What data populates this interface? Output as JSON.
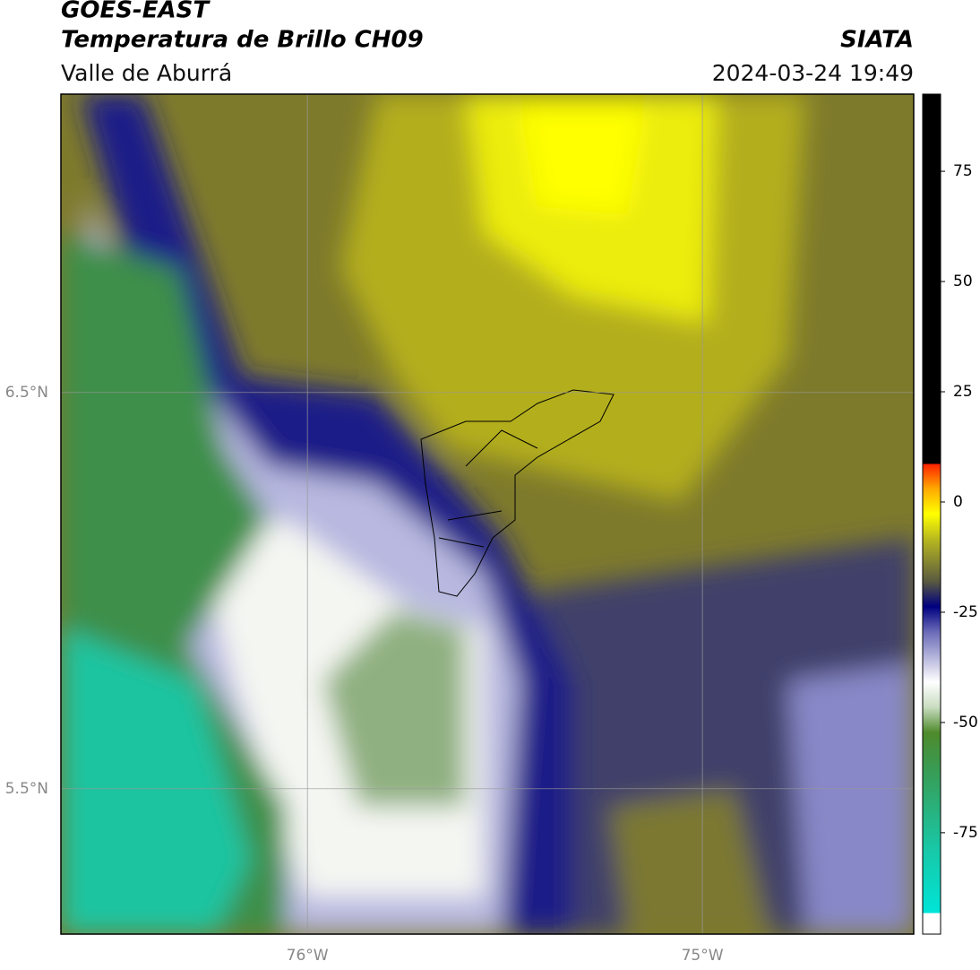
{
  "header": {
    "title": "GOES-EAST",
    "subtitle": "Temperatura de Brillo CH09",
    "region": "Valle de Aburrá",
    "source": "SIATA",
    "datetime": "2024-03-24 19:49"
  },
  "map": {
    "lonlim": [
      -76.624,
      -74.465
    ],
    "latlim": [
      5.133,
      7.253
    ],
    "lon_ticks": [
      {
        "value": -76,
        "label": "76°W"
      },
      {
        "value": -75,
        "label": "75°W"
      }
    ],
    "lat_ticks": [
      {
        "value": 6.5,
        "label": "6.5°N"
      },
      {
        "value": 5.5,
        "label": "5.5°N"
      }
    ],
    "grid": true
  },
  "colorbar": {
    "lim": [
      -98,
      92.5
    ],
    "ticks": [
      75,
      50,
      25,
      0,
      -25,
      -50,
      -75
    ]
  }
}
